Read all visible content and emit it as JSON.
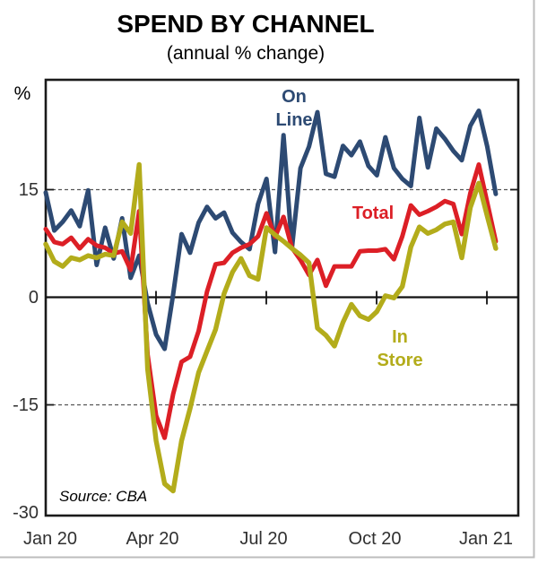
{
  "title": "SPEND BY CHANNEL",
  "subtitle": "(annual % change)",
  "source_note": "Source: CBA",
  "y_axis": {
    "unit_label": "%",
    "tick_labels": [
      "15",
      "0",
      "-15",
      "-30"
    ],
    "tick_values": [
      15,
      0,
      -15,
      -30
    ]
  },
  "x_axis": {
    "tick_labels": [
      "Jan 20",
      "Apr 20",
      "Jul 20",
      "Oct 20",
      "Jan 21"
    ]
  },
  "colors": {
    "online": "#2d4a73",
    "total": "#dc1f26",
    "instore": "#b3ac1b",
    "axis_text": "#303030",
    "frame": "#1a1a1a",
    "gridline": "#555555",
    "page_edge": "#bdbdbd"
  },
  "chart_data": {
    "type": "line",
    "title": "SPEND BY CHANNEL",
    "subtitle": "(annual % change)",
    "ylabel": "%",
    "x_unit": "weekly observations, Jan 2020 to late Jan 2021",
    "x_tick_labels": [
      "Jan 20",
      "Apr 20",
      "Jul 20",
      "Oct 20",
      "Jan 21"
    ],
    "ylim": [
      -30.4,
      30.3
    ],
    "y_gridlines_dashed": [
      15,
      -15
    ],
    "zero_line": true,
    "legend_position": "labels drawn beside lines",
    "series": [
      {
        "name": "On Line",
        "label_lines": [
          "On",
          "Line"
        ],
        "color": "#2d4a73",
        "values": [
          14.6,
          9.3,
          10.5,
          12.1,
          9.9,
          14.9,
          4.5,
          9.7,
          5.4,
          11.0,
          2.7,
          5.8,
          -0.8,
          -5.2,
          -7.2,
          0.4,
          8.8,
          6.2,
          10.4,
          12.6,
          11.0,
          11.8,
          9.0,
          7.7,
          6.7,
          13.0,
          16.5,
          6.3,
          22.6,
          6.9,
          18.0,
          21.0,
          25.8,
          17.2,
          16.8,
          21.1,
          19.8,
          21.7,
          18.3,
          17.0,
          22.3,
          18.0,
          16.5,
          15.5,
          25.0,
          18.1,
          23.5,
          22.1,
          20.4,
          19.1,
          23.9,
          26.0,
          21.0,
          14.4
        ]
      },
      {
        "name": "Total",
        "label_lines": [
          "Total"
        ],
        "color": "#dc1f26",
        "values": [
          9.5,
          7.7,
          7.4,
          8.3,
          6.8,
          8.1,
          7.2,
          6.9,
          6.1,
          6.4,
          3.8,
          12.0,
          -8.0,
          -16.5,
          -19.6,
          -13.5,
          -9.0,
          -8.3,
          -4.7,
          0.8,
          4.6,
          4.8,
          6.2,
          6.9,
          7.4,
          8.5,
          11.7,
          8.4,
          11.2,
          6.9,
          5.2,
          3.1,
          5.2,
          1.6,
          4.3,
          4.3,
          4.3,
          6.4,
          6.5,
          6.5,
          6.7,
          5.3,
          8.5,
          12.8,
          11.5,
          12.0,
          12.6,
          13.4,
          13.0,
          8.8,
          14.5,
          18.5,
          13.2,
          7.8
        ]
      },
      {
        "name": "In Store",
        "label_lines": [
          "In",
          "Store"
        ],
        "color": "#b3ac1b",
        "values": [
          7.4,
          5.0,
          4.3,
          5.5,
          5.2,
          5.8,
          5.5,
          6.0,
          5.8,
          10.5,
          8.9,
          18.5,
          -10.0,
          -20.0,
          -26.0,
          -27.0,
          -20.0,
          -15.5,
          -10.5,
          -7.5,
          -4.5,
          0.5,
          3.5,
          5.4,
          3.0,
          2.5,
          9.7,
          8.7,
          7.8,
          6.8,
          5.9,
          4.8,
          -4.3,
          -5.3,
          -6.8,
          -3.5,
          -1.0,
          -2.6,
          -3.1,
          -2.0,
          0.2,
          -0.1,
          1.5,
          7.0,
          9.8,
          8.9,
          9.4,
          10.2,
          10.5,
          5.5,
          12.5,
          15.9,
          11.3,
          6.8
        ]
      }
    ]
  }
}
